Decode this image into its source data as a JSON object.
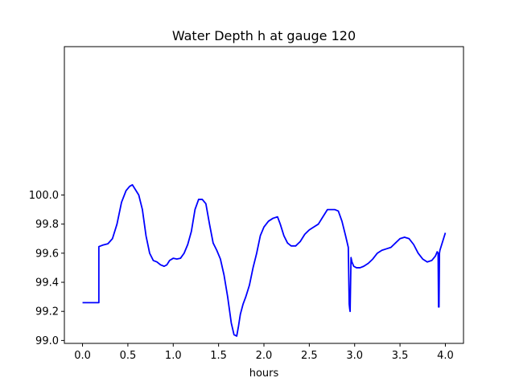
{
  "chart_data": {
    "type": "line",
    "title": "Water Depth h at gauge 120",
    "xlabel": "hours",
    "ylabel": "",
    "xlim": [
      -0.2,
      4.2
    ],
    "ylim": [
      98.98,
      101.02
    ],
    "x_ticks": [
      0.0,
      0.5,
      1.0,
      1.5,
      2.0,
      2.5,
      3.0,
      3.5,
      4.0
    ],
    "x_tick_labels": [
      "0.0",
      "0.5",
      "1.0",
      "1.5",
      "2.0",
      "2.5",
      "3.0",
      "3.5",
      "4.0"
    ],
    "y_ticks": [
      99.0,
      99.2,
      99.4,
      99.6,
      99.8,
      100.0
    ],
    "y_tick_labels": [
      "99.0",
      "99.2",
      "99.4",
      "99.6",
      "99.8",
      "100.0"
    ],
    "grid": false,
    "series": [
      {
        "color": "#0000ff",
        "x": [
          0.0,
          0.18,
          0.18,
          0.22,
          0.28,
          0.33,
          0.38,
          0.43,
          0.48,
          0.52,
          0.55,
          0.58,
          0.62,
          0.66,
          0.7,
          0.74,
          0.78,
          0.82,
          0.86,
          0.9,
          0.93,
          0.96,
          1.0,
          1.04,
          1.08,
          1.12,
          1.16,
          1.2,
          1.24,
          1.28,
          1.32,
          1.36,
          1.4,
          1.44,
          1.48,
          1.52,
          1.56,
          1.6,
          1.64,
          1.67,
          1.7,
          1.72,
          1.74,
          1.77,
          1.8,
          1.84,
          1.88,
          1.92,
          1.96,
          2.0,
          2.05,
          2.1,
          2.15,
          2.18,
          2.22,
          2.26,
          2.3,
          2.35,
          2.4,
          2.45,
          2.5,
          2.55,
          2.6,
          2.65,
          2.7,
          2.74,
          2.78,
          2.82,
          2.86,
          2.9,
          2.93,
          2.94,
          2.945,
          2.95,
          2.96,
          2.97,
          2.99,
          3.02,
          3.06,
          3.1,
          3.15,
          3.2,
          3.25,
          3.3,
          3.35,
          3.4,
          3.45,
          3.5,
          3.55,
          3.6,
          3.65,
          3.7,
          3.75,
          3.8,
          3.85,
          3.89,
          3.91,
          3.92,
          3.925,
          3.93,
          3.935,
          3.94,
          3.96,
          4.0
        ],
        "y": [
          99.26,
          99.26,
          99.645,
          99.655,
          99.665,
          99.7,
          99.8,
          99.95,
          100.03,
          100.06,
          100.07,
          100.04,
          100.0,
          99.9,
          99.72,
          99.6,
          99.55,
          99.54,
          99.52,
          99.51,
          99.52,
          99.55,
          99.565,
          99.56,
          99.565,
          99.6,
          99.66,
          99.75,
          99.9,
          99.97,
          99.97,
          99.94,
          99.8,
          99.67,
          99.62,
          99.56,
          99.45,
          99.3,
          99.12,
          99.04,
          99.03,
          99.1,
          99.18,
          99.25,
          99.3,
          99.38,
          99.5,
          99.6,
          99.72,
          99.78,
          99.82,
          99.84,
          99.85,
          99.8,
          99.72,
          99.67,
          99.65,
          99.65,
          99.68,
          99.73,
          99.76,
          99.78,
          99.8,
          99.85,
          99.9,
          99.9,
          99.9,
          99.89,
          99.82,
          99.72,
          99.64,
          99.25,
          99.22,
          99.2,
          99.57,
          99.54,
          99.51,
          99.5,
          99.5,
          99.51,
          99.53,
          99.56,
          99.6,
          99.62,
          99.63,
          99.64,
          99.67,
          99.7,
          99.71,
          99.7,
          99.66,
          99.6,
          99.56,
          99.54,
          99.55,
          99.58,
          99.61,
          99.6,
          99.23,
          99.23,
          99.6,
          99.62,
          99.66,
          99.74
        ]
      }
    ]
  }
}
